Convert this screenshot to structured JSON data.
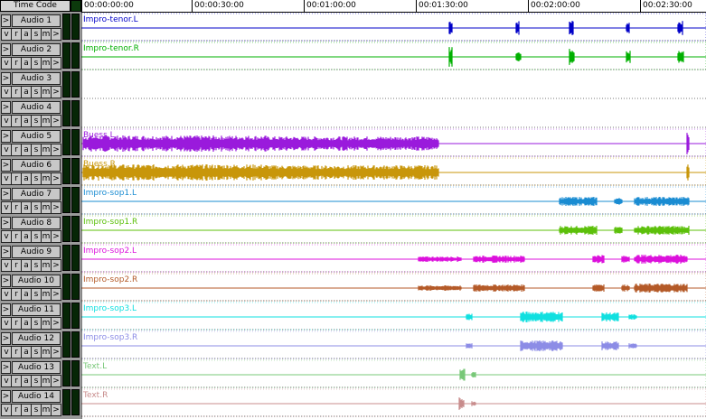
{
  "ruler": {
    "title": "Time Code",
    "ticks": [
      "00:00:00:00",
      "00:00:30:00",
      "00:01:00:00",
      "00:01:30:00",
      "00:02:00:00",
      "00:02:30:00"
    ]
  },
  "button_labels": {
    "expand": ">",
    "v": "v",
    "r": "r",
    "a": "a",
    "s": "s",
    "m": "m"
  },
  "tracks": [
    {
      "name": "Audio 1",
      "region": "Impro-tenor.L",
      "color": "#0000c8"
    },
    {
      "name": "Audio 2",
      "region": "Impro-tenor.R",
      "color": "#00b000"
    },
    {
      "name": "Audio 3",
      "region": "",
      "color": "#000000"
    },
    {
      "name": "Audio 4",
      "region": "",
      "color": "#000000"
    },
    {
      "name": "Audio 5",
      "region": "Buess.L",
      "color": "#9a1adc"
    },
    {
      "name": "Audio 6",
      "region": "Buess.R",
      "color": "#c8960a"
    },
    {
      "name": "Audio 7",
      "region": "Impro-sop1.L",
      "color": "#1a8cd2"
    },
    {
      "name": "Audio 8",
      "region": "Impro-sop1.R",
      "color": "#5cc00a"
    },
    {
      "name": "Audio 9",
      "region": "Impro-sop2.L",
      "color": "#dc10dc"
    },
    {
      "name": "Audio 10",
      "region": "Impro-sop2.R",
      "color": "#b45a28"
    },
    {
      "name": "Audio 11",
      "region": "Impro-sop3.L",
      "color": "#10e0e0"
    },
    {
      "name": "Audio 12",
      "region": "Impro-sop3.R",
      "color": "#8c8ce6"
    },
    {
      "name": "Audio 13",
      "region": "Text.L",
      "color": "#78c878"
    },
    {
      "name": "Audio 14",
      "region": "Text.R",
      "color": "#c88c8c"
    }
  ]
}
